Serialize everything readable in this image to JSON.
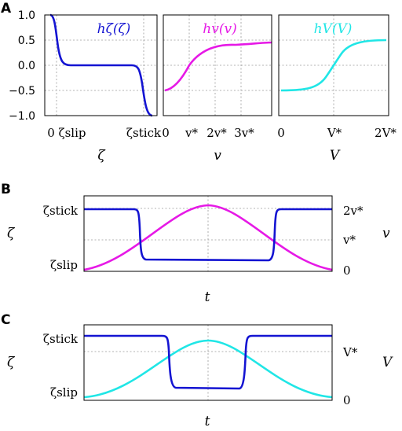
{
  "panel_labels": [
    "A",
    "B",
    "C"
  ],
  "colors": {
    "zeta": "#1414d2",
    "v": "#e619e6",
    "V": "#20e6e6"
  },
  "chart_data": [
    {
      "panel": "A",
      "type": "line",
      "title": "hζ(ζ)",
      "xlabel": "ζ",
      "ylabel": "",
      "ylim": [
        -1.0,
        1.0
      ],
      "yticks": [
        "1.0",
        "0.5",
        "0.0",
        "−0.5",
        "−1.0"
      ],
      "xticks": [
        "0",
        "ζslip",
        "ζstick"
      ],
      "grid": true,
      "series": [
        {
          "values_sampled": [
            {
              "x": 0.0,
              "y": 1.0
            },
            {
              "x": 0.05,
              "y": 0.5
            },
            {
              "x": 0.1,
              "y": 0.08
            },
            {
              "x": 0.2,
              "y": 0.0
            },
            {
              "x": 0.5,
              "y": 0.0
            },
            {
              "x": 0.8,
              "y": 0.0
            },
            {
              "x": 0.9,
              "y": -0.08
            },
            {
              "x": 0.95,
              "y": -0.5
            },
            {
              "x": 1.0,
              "y": -1.0
            }
          ]
        }
      ]
    },
    {
      "panel": "A",
      "type": "line",
      "title": "hv(v)",
      "xlabel": "v",
      "ylabel": "",
      "ylim": [
        -1.0,
        1.0
      ],
      "xticks": [
        "0",
        "v*",
        "2v*",
        "3v*"
      ],
      "grid": true,
      "series": [
        {
          "values_sampled": [
            {
              "x": 0,
              "y": -0.5
            },
            {
              "x": 0.5,
              "y": -0.28
            },
            {
              "x": 1,
              "y": 0.0
            },
            {
              "x": 2,
              "y": 0.3
            },
            {
              "x": 3,
              "y": 0.4
            },
            {
              "x": 4,
              "y": 0.45
            }
          ]
        }
      ]
    },
    {
      "panel": "A",
      "type": "line",
      "title": "hV(V)",
      "xlabel": "V",
      "ylabel": "",
      "ylim": [
        -1.0,
        1.0
      ],
      "xticks": [
        "0",
        "V*",
        "2V*"
      ],
      "grid": true,
      "series": [
        {
          "values_sampled": [
            {
              "x": 0,
              "y": -0.5
            },
            {
              "x": 0.5,
              "y": -0.45
            },
            {
              "x": 1,
              "y": 0.0
            },
            {
              "x": 1.5,
              "y": 0.45
            },
            {
              "x": 2,
              "y": 0.5
            }
          ]
        }
      ]
    },
    {
      "panel": "B",
      "type": "line",
      "xlabel": "t",
      "ylabel_left": "ζ",
      "ylabel_right": "v",
      "yticks_left": [
        "ζstick",
        "ζslip"
      ],
      "yticks_right": [
        "2v*",
        "v*",
        "0"
      ],
      "grid": true,
      "series": [
        {
          "name": "ζ",
          "values_sampled": [
            {
              "t": 0,
              "y": "ζstick"
            },
            {
              "t": 0.28,
              "y": "ζstick"
            },
            {
              "t": 0.3,
              "y": "ζslip"
            },
            {
              "t": 0.7,
              "y": "ζslip"
            },
            {
              "t": 0.72,
              "y": "ζstick"
            },
            {
              "t": 1,
              "y": "ζstick"
            }
          ]
        },
        {
          "name": "v",
          "values_sampled": [
            {
              "t": 0,
              "y": 0
            },
            {
              "t": 0.25,
              "y": 1.05
            },
            {
              "t": 0.5,
              "y": 2.1
            },
            {
              "t": 0.75,
              "y": 1.05
            },
            {
              "t": 1,
              "y": 0
            }
          ]
        }
      ]
    },
    {
      "panel": "C",
      "type": "line",
      "xlabel": "t",
      "ylabel_left": "ζ",
      "ylabel_right": "V",
      "yticks_left": [
        "ζstick",
        "ζslip"
      ],
      "yticks_right": [
        "V*",
        "0"
      ],
      "grid": true,
      "series": [
        {
          "name": "ζ",
          "values_sampled": [
            {
              "t": 0,
              "y": "ζstick"
            },
            {
              "t": 0.38,
              "y": "ζstick"
            },
            {
              "t": 0.4,
              "y": "ζslip"
            },
            {
              "t": 0.6,
              "y": "ζslip"
            },
            {
              "t": 0.62,
              "y": "ζstick"
            },
            {
              "t": 1,
              "y": "ζstick"
            }
          ]
        },
        {
          "name": "V",
          "values_sampled": [
            {
              "t": 0,
              "y": 0
            },
            {
              "t": 0.25,
              "y": 0.6
            },
            {
              "t": 0.5,
              "y": 1.2
            },
            {
              "t": 0.75,
              "y": 0.6
            },
            {
              "t": 1,
              "y": 0
            }
          ]
        }
      ]
    }
  ]
}
